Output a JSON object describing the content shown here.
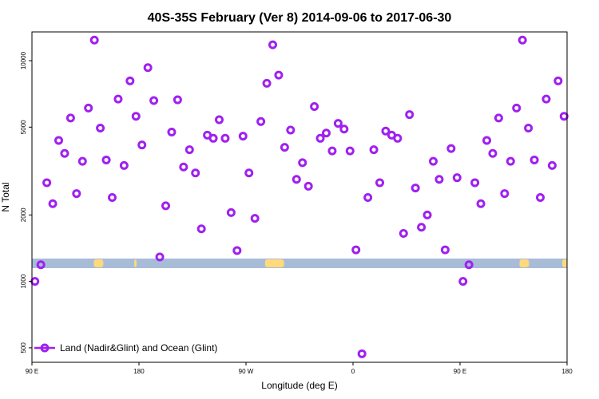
{
  "chart_data": {
    "type": "scatter",
    "title": "40S-35S February (Ver 8)   2014-09-06 to 2017-06-30",
    "xlabel": "Longitude (deg E)",
    "ylabel": "N Total",
    "y_scale": "log",
    "ylim": [
      430,
      13500
    ],
    "x_ticks": [
      {
        "pos": 0,
        "label": "90 E"
      },
      {
        "pos": 90,
        "label": "180"
      },
      {
        "pos": 180,
        "label": "90 W"
      },
      {
        "pos": 270,
        "label": "0"
      },
      {
        "pos": 360,
        "label": "90 E"
      },
      {
        "pos": 450,
        "label": "180"
      }
    ],
    "xlim": [
      0,
      450
    ],
    "y_ticks": [
      500,
      1000,
      2000,
      5000,
      10000
    ],
    "grid": false,
    "legend_position": "bottom-left",
    "series": [
      {
        "name": "Land (Nadir&Glint) and Ocean (Glint)",
        "color": "#a020f0",
        "points": [
          [
            2.5,
            1000
          ],
          [
            7.5,
            1190
          ],
          [
            12.5,
            2800
          ],
          [
            17.5,
            2250
          ],
          [
            22.5,
            4350
          ],
          [
            27.5,
            3800
          ],
          [
            32.5,
            5500
          ],
          [
            37.5,
            2500
          ],
          [
            42.5,
            3500
          ],
          [
            47.5,
            6100
          ],
          [
            52.5,
            12400
          ],
          [
            57.5,
            4950
          ],
          [
            62.5,
            3550
          ],
          [
            67.5,
            2400
          ],
          [
            72.5,
            6700
          ],
          [
            77.5,
            3350
          ],
          [
            82.5,
            8100
          ],
          [
            87.5,
            5600
          ],
          [
            92.5,
            4150
          ],
          [
            97.5,
            9300
          ],
          [
            102.5,
            6600
          ],
          [
            107.5,
            1290
          ],
          [
            112.5,
            2200
          ],
          [
            117.5,
            4750
          ],
          [
            122.5,
            6650
          ],
          [
            127.5,
            3300
          ],
          [
            132.5,
            3950
          ],
          [
            137.5,
            3100
          ],
          [
            142.5,
            1730
          ],
          [
            147.5,
            4600
          ],
          [
            152.5,
            4450
          ],
          [
            157.5,
            5400
          ],
          [
            162.5,
            4450
          ],
          [
            167.5,
            2050
          ],
          [
            172.5,
            1380
          ],
          [
            177.5,
            4550
          ],
          [
            182.5,
            3100
          ],
          [
            187.5,
            1930
          ],
          [
            192.5,
            5300
          ],
          [
            197.5,
            7900
          ],
          [
            202.5,
            11800
          ],
          [
            207.5,
            8600
          ],
          [
            212.5,
            4050
          ],
          [
            217.5,
            4850
          ],
          [
            222.5,
            2900
          ],
          [
            227.5,
            3450
          ],
          [
            232.5,
            2700
          ],
          [
            237.5,
            6200
          ],
          [
            242.5,
            4450
          ],
          [
            247.5,
            4700
          ],
          [
            252.5,
            3900
          ],
          [
            257.5,
            5200
          ],
          [
            262.5,
            4900
          ],
          [
            267.5,
            3900
          ],
          [
            272.5,
            1390
          ],
          [
            277.5,
            470
          ],
          [
            282.5,
            2400
          ],
          [
            287.5,
            3950
          ],
          [
            292.5,
            2800
          ],
          [
            297.5,
            4800
          ],
          [
            302.5,
            4600
          ],
          [
            307.5,
            4450
          ],
          [
            312.5,
            1650
          ],
          [
            317.5,
            5700
          ],
          [
            322.5,
            2650
          ],
          [
            327.5,
            1760
          ],
          [
            332.5,
            2000
          ],
          [
            337.5,
            3500
          ],
          [
            342.5,
            2900
          ],
          [
            347.5,
            1390
          ],
          [
            352.5,
            4000
          ],
          [
            357.5,
            2950
          ],
          [
            362.5,
            1000
          ],
          [
            367.5,
            1190
          ],
          [
            372.5,
            2800
          ],
          [
            377.5,
            2250
          ],
          [
            382.5,
            4350
          ],
          [
            387.5,
            3800
          ],
          [
            392.5,
            5500
          ],
          [
            397.5,
            2500
          ],
          [
            402.5,
            3500
          ],
          [
            407.5,
            6100
          ],
          [
            412.5,
            12400
          ],
          [
            417.5,
            4950
          ],
          [
            422.5,
            3550
          ],
          [
            427.5,
            2400
          ],
          [
            432.5,
            6700
          ],
          [
            437.5,
            3350
          ],
          [
            442.5,
            8100
          ],
          [
            447.5,
            5600
          ]
        ]
      }
    ],
    "band": {
      "color": "#a8bcd8",
      "land_color": "#ffd97a",
      "land_segments": [
        [
          52,
          60
        ],
        [
          86,
          88
        ],
        [
          196,
          212
        ],
        [
          410,
          418
        ],
        [
          446,
          450
        ]
      ]
    }
  }
}
